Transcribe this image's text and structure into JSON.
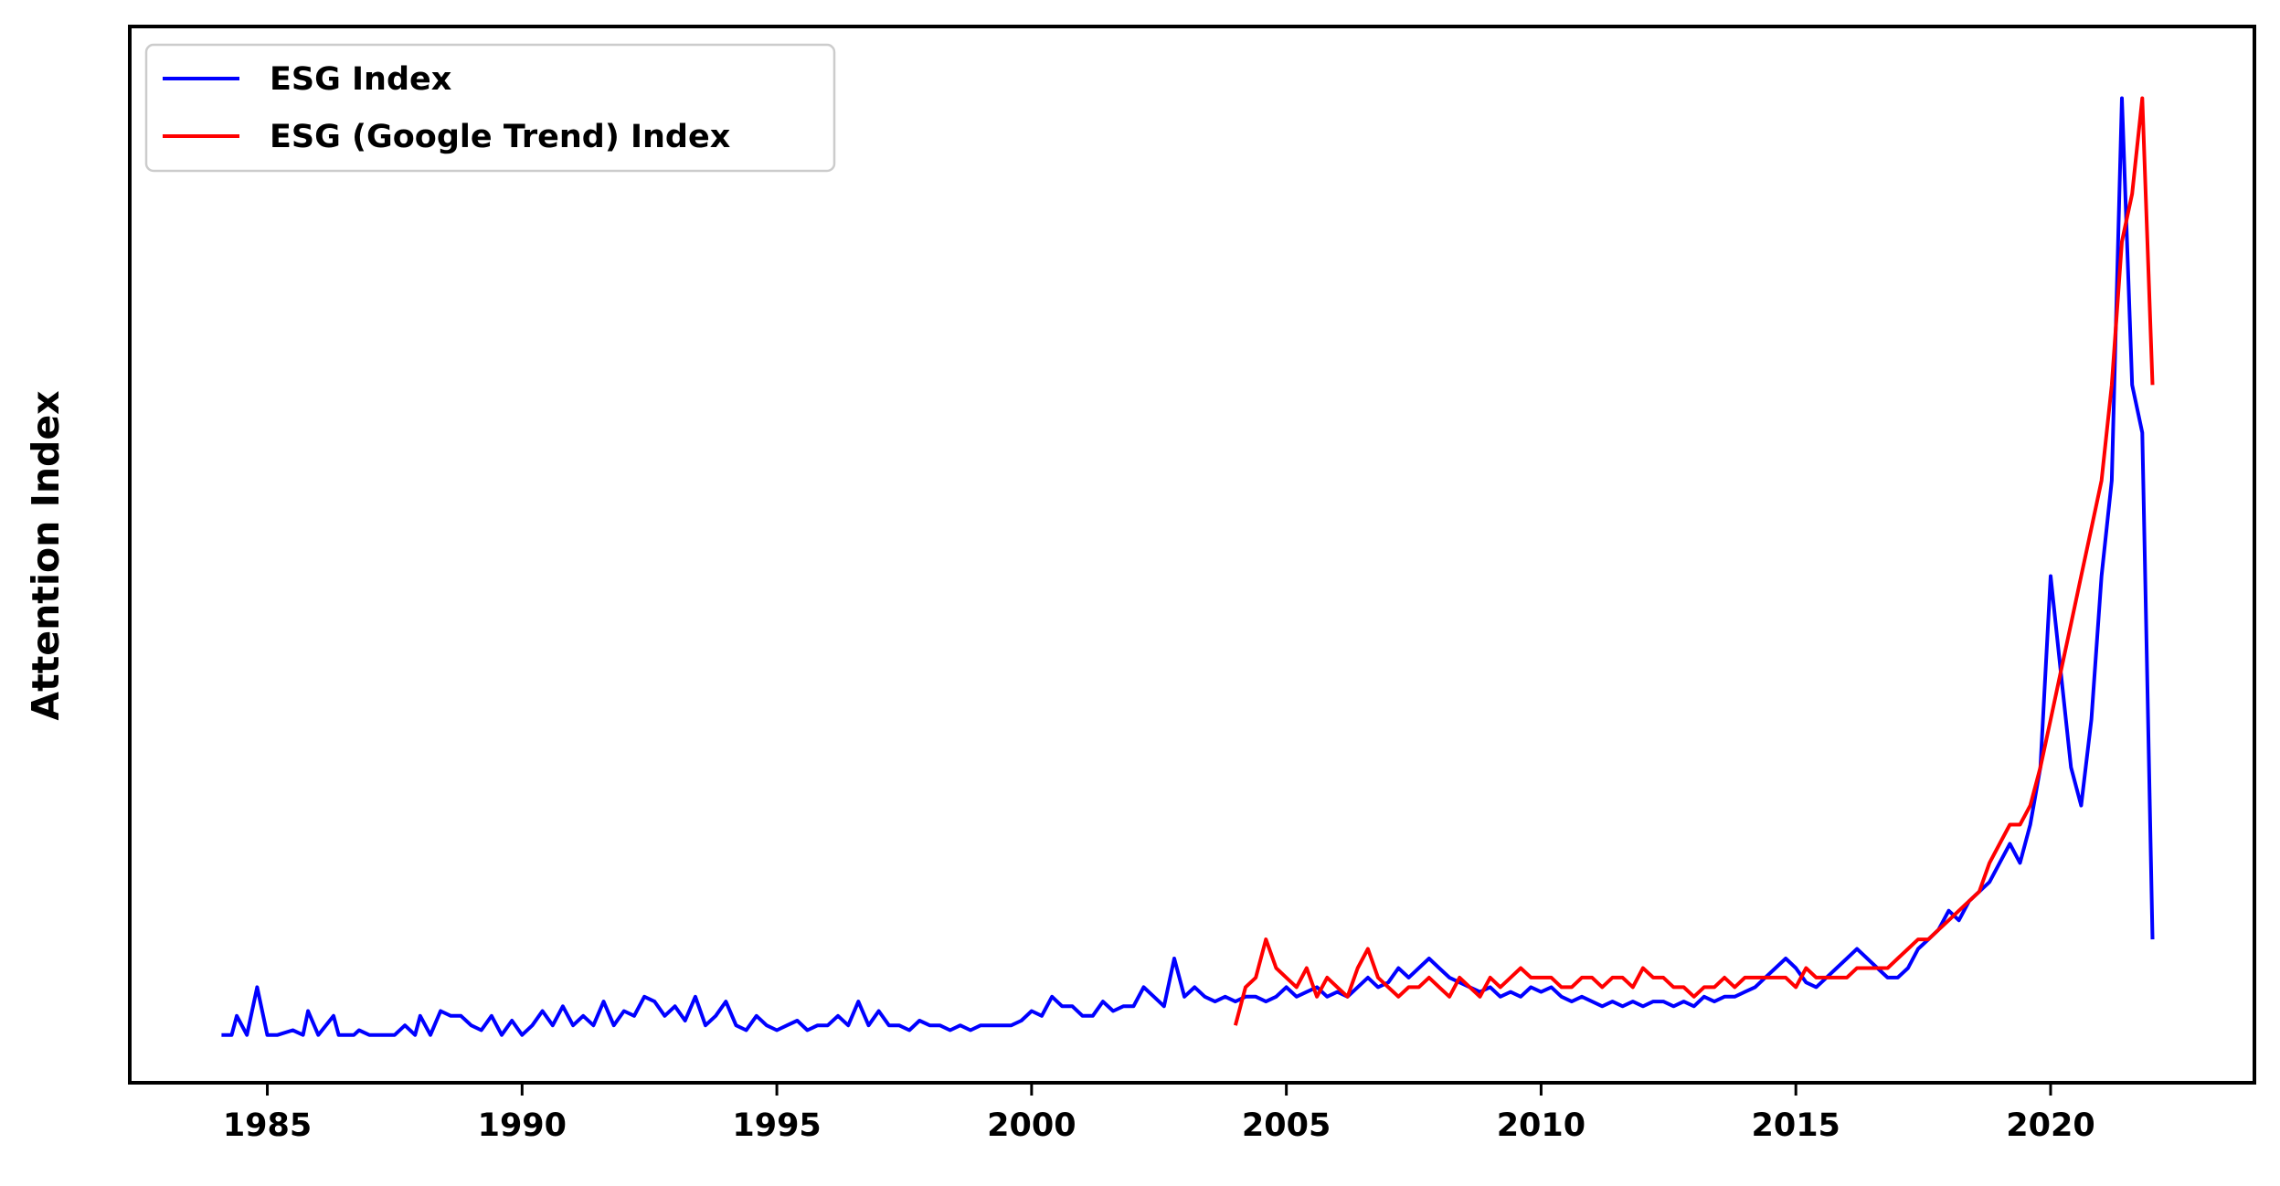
{
  "chart_data": {
    "type": "line",
    "title": "",
    "xlabel": "",
    "ylabel": "Attention Index",
    "xlim": [
      1982.3,
      2024.0
    ],
    "ylim": [
      -0.3,
      10.75
    ],
    "y_ticks_shown": false,
    "x_ticks": [
      1985,
      1990,
      1995,
      2000,
      2005,
      2010,
      2015,
      2020
    ],
    "grid": false,
    "legend_position": "top-left",
    "series": [
      {
        "name": "ESG Index",
        "color": "#0000ff",
        "points": [
          [
            1984.1,
            0.2
          ],
          [
            1984.3,
            0.2
          ],
          [
            1984.4,
            0.4
          ],
          [
            1984.6,
            0.2
          ],
          [
            1984.8,
            0.7
          ],
          [
            1985.0,
            0.2
          ],
          [
            1985.2,
            0.2
          ],
          [
            1985.5,
            0.25
          ],
          [
            1985.7,
            0.2
          ],
          [
            1985.8,
            0.45
          ],
          [
            1986.0,
            0.2
          ],
          [
            1986.3,
            0.4
          ],
          [
            1986.4,
            0.2
          ],
          [
            1986.7,
            0.2
          ],
          [
            1986.8,
            0.25
          ],
          [
            1987.0,
            0.2
          ],
          [
            1987.3,
            0.2
          ],
          [
            1987.5,
            0.2
          ],
          [
            1987.7,
            0.3
          ],
          [
            1987.9,
            0.2
          ],
          [
            1988.0,
            0.4
          ],
          [
            1988.2,
            0.2
          ],
          [
            1988.4,
            0.45
          ],
          [
            1988.6,
            0.4
          ],
          [
            1988.8,
            0.4
          ],
          [
            1989.0,
            0.3
          ],
          [
            1989.2,
            0.25
          ],
          [
            1989.4,
            0.4
          ],
          [
            1989.6,
            0.2
          ],
          [
            1989.8,
            0.35
          ],
          [
            1990.0,
            0.2
          ],
          [
            1990.2,
            0.3
          ],
          [
            1990.4,
            0.45
          ],
          [
            1990.6,
            0.3
          ],
          [
            1990.8,
            0.5
          ],
          [
            1991.0,
            0.3
          ],
          [
            1991.2,
            0.4
          ],
          [
            1991.4,
            0.3
          ],
          [
            1991.6,
            0.55
          ],
          [
            1991.8,
            0.3
          ],
          [
            1992.0,
            0.45
          ],
          [
            1992.2,
            0.4
          ],
          [
            1992.4,
            0.6
          ],
          [
            1992.6,
            0.55
          ],
          [
            1992.8,
            0.4
          ],
          [
            1993.0,
            0.5
          ],
          [
            1993.2,
            0.35
          ],
          [
            1993.4,
            0.6
          ],
          [
            1993.6,
            0.3
          ],
          [
            1993.8,
            0.4
          ],
          [
            1994.0,
            0.55
          ],
          [
            1994.2,
            0.3
          ],
          [
            1994.4,
            0.25
          ],
          [
            1994.6,
            0.4
          ],
          [
            1994.8,
            0.3
          ],
          [
            1995.0,
            0.25
          ],
          [
            1995.2,
            0.3
          ],
          [
            1995.4,
            0.35
          ],
          [
            1995.6,
            0.25
          ],
          [
            1995.8,
            0.3
          ],
          [
            1996.0,
            0.3
          ],
          [
            1996.2,
            0.4
          ],
          [
            1996.4,
            0.3
          ],
          [
            1996.6,
            0.55
          ],
          [
            1996.8,
            0.3
          ],
          [
            1997.0,
            0.45
          ],
          [
            1997.2,
            0.3
          ],
          [
            1997.4,
            0.3
          ],
          [
            1997.6,
            0.25
          ],
          [
            1997.8,
            0.35
          ],
          [
            1998.0,
            0.3
          ],
          [
            1998.2,
            0.3
          ],
          [
            1998.4,
            0.25
          ],
          [
            1998.6,
            0.3
          ],
          [
            1998.8,
            0.25
          ],
          [
            1999.0,
            0.3
          ],
          [
            1999.2,
            0.3
          ],
          [
            1999.4,
            0.3
          ],
          [
            1999.6,
            0.3
          ],
          [
            1999.8,
            0.35
          ],
          [
            2000.0,
            0.45
          ],
          [
            2000.2,
            0.4
          ],
          [
            2000.4,
            0.6
          ],
          [
            2000.6,
            0.5
          ],
          [
            2000.8,
            0.5
          ],
          [
            2001.0,
            0.4
          ],
          [
            2001.2,
            0.4
          ],
          [
            2001.4,
            0.55
          ],
          [
            2001.6,
            0.45
          ],
          [
            2001.8,
            0.5
          ],
          [
            2002.0,
            0.5
          ],
          [
            2002.2,
            0.7
          ],
          [
            2002.4,
            0.6
          ],
          [
            2002.6,
            0.5
          ],
          [
            2002.8,
            1.0
          ],
          [
            2003.0,
            0.6
          ],
          [
            2003.2,
            0.7
          ],
          [
            2003.4,
            0.6
          ],
          [
            2003.6,
            0.55
          ],
          [
            2003.8,
            0.6
          ],
          [
            2004.0,
            0.55
          ],
          [
            2004.2,
            0.6
          ],
          [
            2004.4,
            0.6
          ],
          [
            2004.6,
            0.55
          ],
          [
            2004.8,
            0.6
          ],
          [
            2005.0,
            0.7
          ],
          [
            2005.2,
            0.6
          ],
          [
            2005.4,
            0.65
          ],
          [
            2005.6,
            0.7
          ],
          [
            2005.8,
            0.6
          ],
          [
            2006.0,
            0.65
          ],
          [
            2006.2,
            0.6
          ],
          [
            2006.4,
            0.7
          ],
          [
            2006.6,
            0.8
          ],
          [
            2006.8,
            0.7
          ],
          [
            2007.0,
            0.75
          ],
          [
            2007.2,
            0.9
          ],
          [
            2007.4,
            0.8
          ],
          [
            2007.6,
            0.9
          ],
          [
            2007.8,
            1.0
          ],
          [
            2008.0,
            0.9
          ],
          [
            2008.2,
            0.8
          ],
          [
            2008.4,
            0.75
          ],
          [
            2008.6,
            0.7
          ],
          [
            2008.8,
            0.65
          ],
          [
            2009.0,
            0.7
          ],
          [
            2009.2,
            0.6
          ],
          [
            2009.4,
            0.65
          ],
          [
            2009.6,
            0.6
          ],
          [
            2009.8,
            0.7
          ],
          [
            2010.0,
            0.65
          ],
          [
            2010.2,
            0.7
          ],
          [
            2010.4,
            0.6
          ],
          [
            2010.6,
            0.55
          ],
          [
            2010.8,
            0.6
          ],
          [
            2011.0,
            0.55
          ],
          [
            2011.2,
            0.5
          ],
          [
            2011.4,
            0.55
          ],
          [
            2011.6,
            0.5
          ],
          [
            2011.8,
            0.55
          ],
          [
            2012.0,
            0.5
          ],
          [
            2012.2,
            0.55
          ],
          [
            2012.4,
            0.55
          ],
          [
            2012.6,
            0.5
          ],
          [
            2012.8,
            0.55
          ],
          [
            2013.0,
            0.5
          ],
          [
            2013.2,
            0.6
          ],
          [
            2013.4,
            0.55
          ],
          [
            2013.6,
            0.6
          ],
          [
            2013.8,
            0.6
          ],
          [
            2014.0,
            0.65
          ],
          [
            2014.2,
            0.7
          ],
          [
            2014.4,
            0.8
          ],
          [
            2014.6,
            0.9
          ],
          [
            2014.8,
            1.0
          ],
          [
            2015.0,
            0.9
          ],
          [
            2015.2,
            0.75
          ],
          [
            2015.4,
            0.7
          ],
          [
            2015.6,
            0.8
          ],
          [
            2015.8,
            0.9
          ],
          [
            2016.0,
            1.0
          ],
          [
            2016.2,
            1.1
          ],
          [
            2016.4,
            1.0
          ],
          [
            2016.6,
            0.9
          ],
          [
            2016.8,
            0.8
          ],
          [
            2017.0,
            0.8
          ],
          [
            2017.2,
            0.9
          ],
          [
            2017.4,
            1.1
          ],
          [
            2017.6,
            1.2
          ],
          [
            2017.8,
            1.3
          ],
          [
            2018.0,
            1.5
          ],
          [
            2018.2,
            1.4
          ],
          [
            2018.4,
            1.6
          ],
          [
            2018.6,
            1.7
          ],
          [
            2018.8,
            1.8
          ],
          [
            2019.0,
            2.0
          ],
          [
            2019.2,
            2.2
          ],
          [
            2019.4,
            2.0
          ],
          [
            2019.6,
            2.4
          ],
          [
            2019.8,
            3.0
          ],
          [
            2020.0,
            5.0
          ],
          [
            2020.2,
            4.0
          ],
          [
            2020.4,
            3.0
          ],
          [
            2020.6,
            2.6
          ],
          [
            2020.8,
            3.5
          ],
          [
            2021.0,
            5.0
          ],
          [
            2021.2,
            6.0
          ],
          [
            2021.4,
            10.0
          ],
          [
            2021.6,
            7.0
          ],
          [
            2021.8,
            6.5
          ],
          [
            2022.0,
            1.2
          ]
        ]
      },
      {
        "name": "ESG (Google Trend) Index",
        "color": "#ff0000",
        "points": [
          [
            2004.0,
            0.3
          ],
          [
            2004.2,
            0.7
          ],
          [
            2004.4,
            0.8
          ],
          [
            2004.6,
            1.2
          ],
          [
            2004.8,
            0.9
          ],
          [
            2005.0,
            0.8
          ],
          [
            2005.2,
            0.7
          ],
          [
            2005.4,
            0.9
          ],
          [
            2005.6,
            0.6
          ],
          [
            2005.8,
            0.8
          ],
          [
            2006.0,
            0.7
          ],
          [
            2006.2,
            0.6
          ],
          [
            2006.4,
            0.9
          ],
          [
            2006.6,
            1.1
          ],
          [
            2006.8,
            0.8
          ],
          [
            2007.0,
            0.7
          ],
          [
            2007.2,
            0.6
          ],
          [
            2007.4,
            0.7
          ],
          [
            2007.6,
            0.7
          ],
          [
            2007.8,
            0.8
          ],
          [
            2008.0,
            0.7
          ],
          [
            2008.2,
            0.6
          ],
          [
            2008.4,
            0.8
          ],
          [
            2008.6,
            0.7
          ],
          [
            2008.8,
            0.6
          ],
          [
            2009.0,
            0.8
          ],
          [
            2009.2,
            0.7
          ],
          [
            2009.4,
            0.8
          ],
          [
            2009.6,
            0.9
          ],
          [
            2009.8,
            0.8
          ],
          [
            2010.0,
            0.8
          ],
          [
            2010.2,
            0.8
          ],
          [
            2010.4,
            0.7
          ],
          [
            2010.6,
            0.7
          ],
          [
            2010.8,
            0.8
          ],
          [
            2011.0,
            0.8
          ],
          [
            2011.2,
            0.7
          ],
          [
            2011.4,
            0.8
          ],
          [
            2011.6,
            0.8
          ],
          [
            2011.8,
            0.7
          ],
          [
            2012.0,
            0.9
          ],
          [
            2012.2,
            0.8
          ],
          [
            2012.4,
            0.8
          ],
          [
            2012.6,
            0.7
          ],
          [
            2012.8,
            0.7
          ],
          [
            2013.0,
            0.6
          ],
          [
            2013.2,
            0.7
          ],
          [
            2013.4,
            0.7
          ],
          [
            2013.6,
            0.8
          ],
          [
            2013.8,
            0.7
          ],
          [
            2014.0,
            0.8
          ],
          [
            2014.2,
            0.8
          ],
          [
            2014.4,
            0.8
          ],
          [
            2014.6,
            0.8
          ],
          [
            2014.8,
            0.8
          ],
          [
            2015.0,
            0.7
          ],
          [
            2015.2,
            0.9
          ],
          [
            2015.4,
            0.8
          ],
          [
            2015.6,
            0.8
          ],
          [
            2015.8,
            0.8
          ],
          [
            2016.0,
            0.8
          ],
          [
            2016.2,
            0.9
          ],
          [
            2016.4,
            0.9
          ],
          [
            2016.6,
            0.9
          ],
          [
            2016.8,
            0.9
          ],
          [
            2017.0,
            1.0
          ],
          [
            2017.2,
            1.1
          ],
          [
            2017.4,
            1.2
          ],
          [
            2017.6,
            1.2
          ],
          [
            2017.8,
            1.3
          ],
          [
            2018.0,
            1.4
          ],
          [
            2018.2,
            1.5
          ],
          [
            2018.4,
            1.6
          ],
          [
            2018.6,
            1.7
          ],
          [
            2018.8,
            2.0
          ],
          [
            2019.0,
            2.2
          ],
          [
            2019.2,
            2.4
          ],
          [
            2019.4,
            2.4
          ],
          [
            2019.6,
            2.6
          ],
          [
            2019.8,
            3.0
          ],
          [
            2020.0,
            3.5
          ],
          [
            2020.2,
            4.0
          ],
          [
            2020.4,
            4.5
          ],
          [
            2020.6,
            5.0
          ],
          [
            2020.8,
            5.5
          ],
          [
            2021.0,
            6.0
          ],
          [
            2021.2,
            7.0
          ],
          [
            2021.4,
            8.5
          ],
          [
            2021.6,
            9.0
          ],
          [
            2021.8,
            10.0
          ],
          [
            2022.0,
            7.0
          ]
        ]
      }
    ]
  }
}
